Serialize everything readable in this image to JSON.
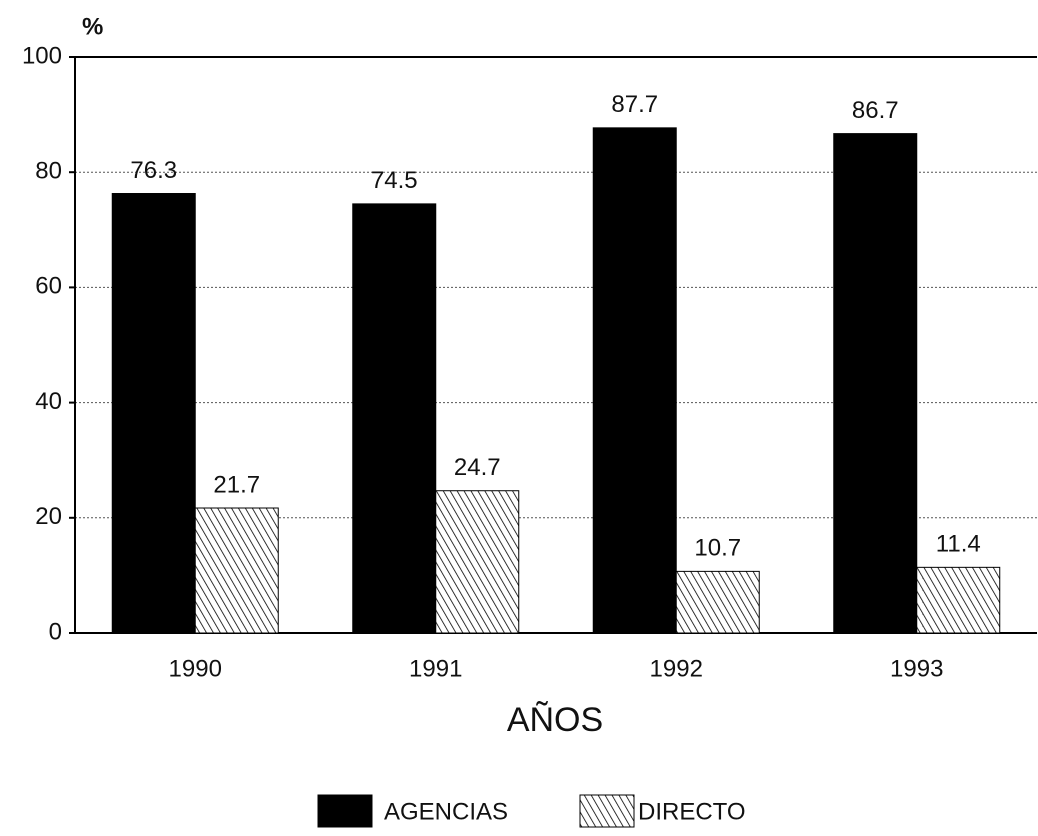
{
  "chart_data": {
    "type": "bar",
    "y_unit": "%",
    "x_label": "AÑOS",
    "categories": [
      "1990",
      "1991",
      "1992",
      "1993"
    ],
    "series": [
      {
        "name": "AGENCIAS",
        "color": "#000000",
        "values": [
          76.3,
          74.5,
          87.7,
          86.7
        ]
      },
      {
        "name": "DIRECTO",
        "color": "#000000",
        "hatch": true,
        "values": [
          21.7,
          24.7,
          10.7,
          11.4
        ]
      }
    ],
    "ylim": [
      0,
      100
    ],
    "yticks": [
      0,
      20,
      40,
      60,
      80,
      100
    ],
    "grid": true,
    "legend": "bottom"
  }
}
